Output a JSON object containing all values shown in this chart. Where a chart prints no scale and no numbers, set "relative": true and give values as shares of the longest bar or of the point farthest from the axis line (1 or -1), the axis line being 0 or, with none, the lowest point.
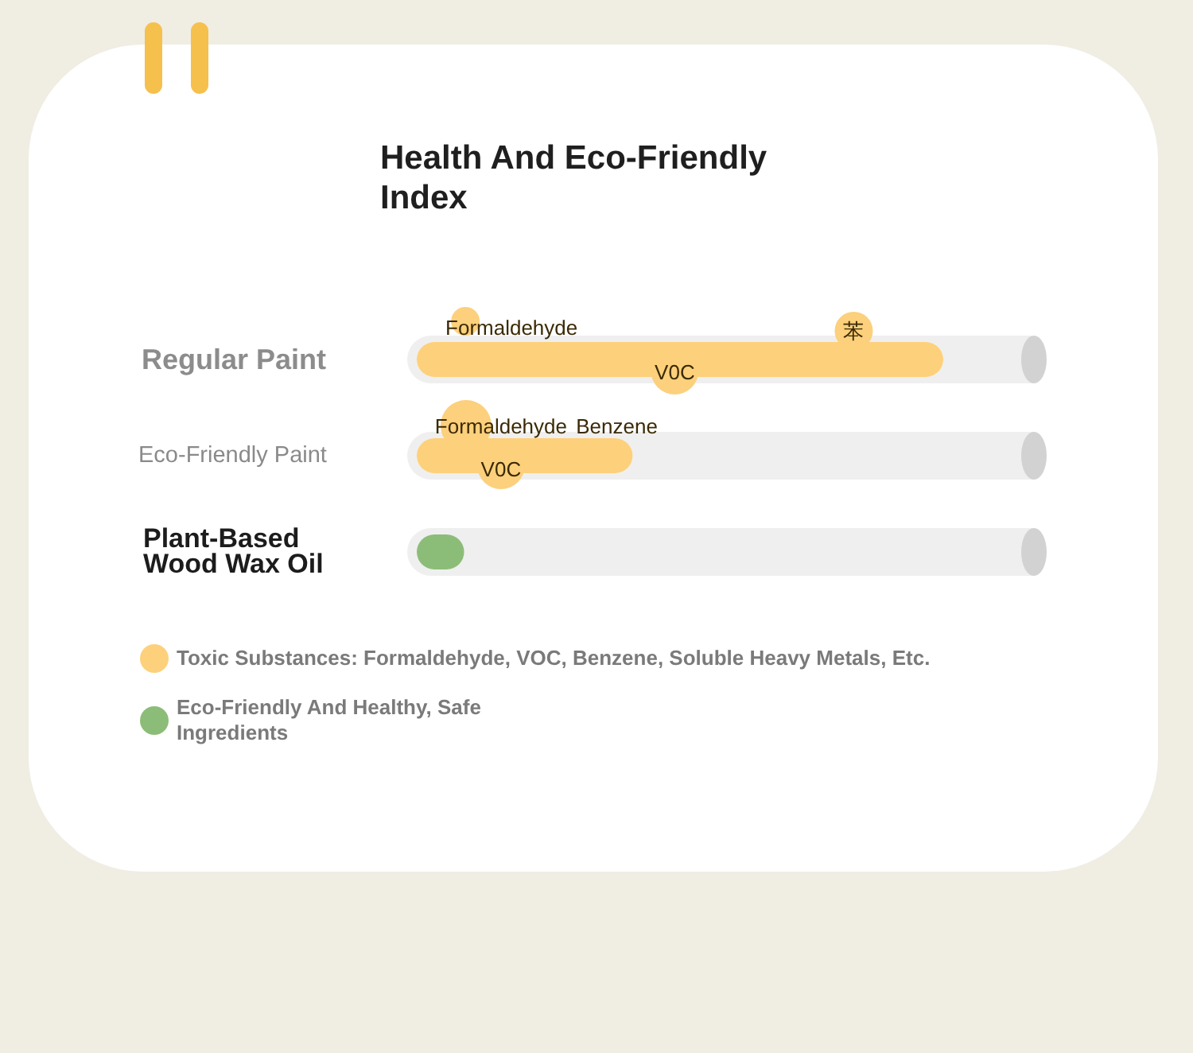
{
  "chart_data": {
    "type": "bar",
    "orientation": "horizontal",
    "stacked": true,
    "relative": true,
    "title": "Health And Eco-Friendly Index",
    "categories": [
      "Regular Paint",
      "Eco-Friendly Paint",
      "Plant-Based Wood Wax Oil"
    ],
    "series": [
      {
        "name": "Toxic Substances: Formaldehyde, VOC, Benzene, Soluble Heavy Metals, Etc.",
        "color": "#fdd07b",
        "values": [
          1,
          0.41,
          null
        ]
      },
      {
        "name": "Eco-Friendly And Healthy, Safe Ingredients",
        "color": "#8cbd78",
        "values": [
          null,
          null,
          0.09
        ]
      }
    ],
    "legend": "bottom",
    "annotations": [
      "Formaldehyde",
      "苯",
      "V0C",
      "Formaldehyde",
      "Benzene",
      "V0C"
    ]
  }
}
